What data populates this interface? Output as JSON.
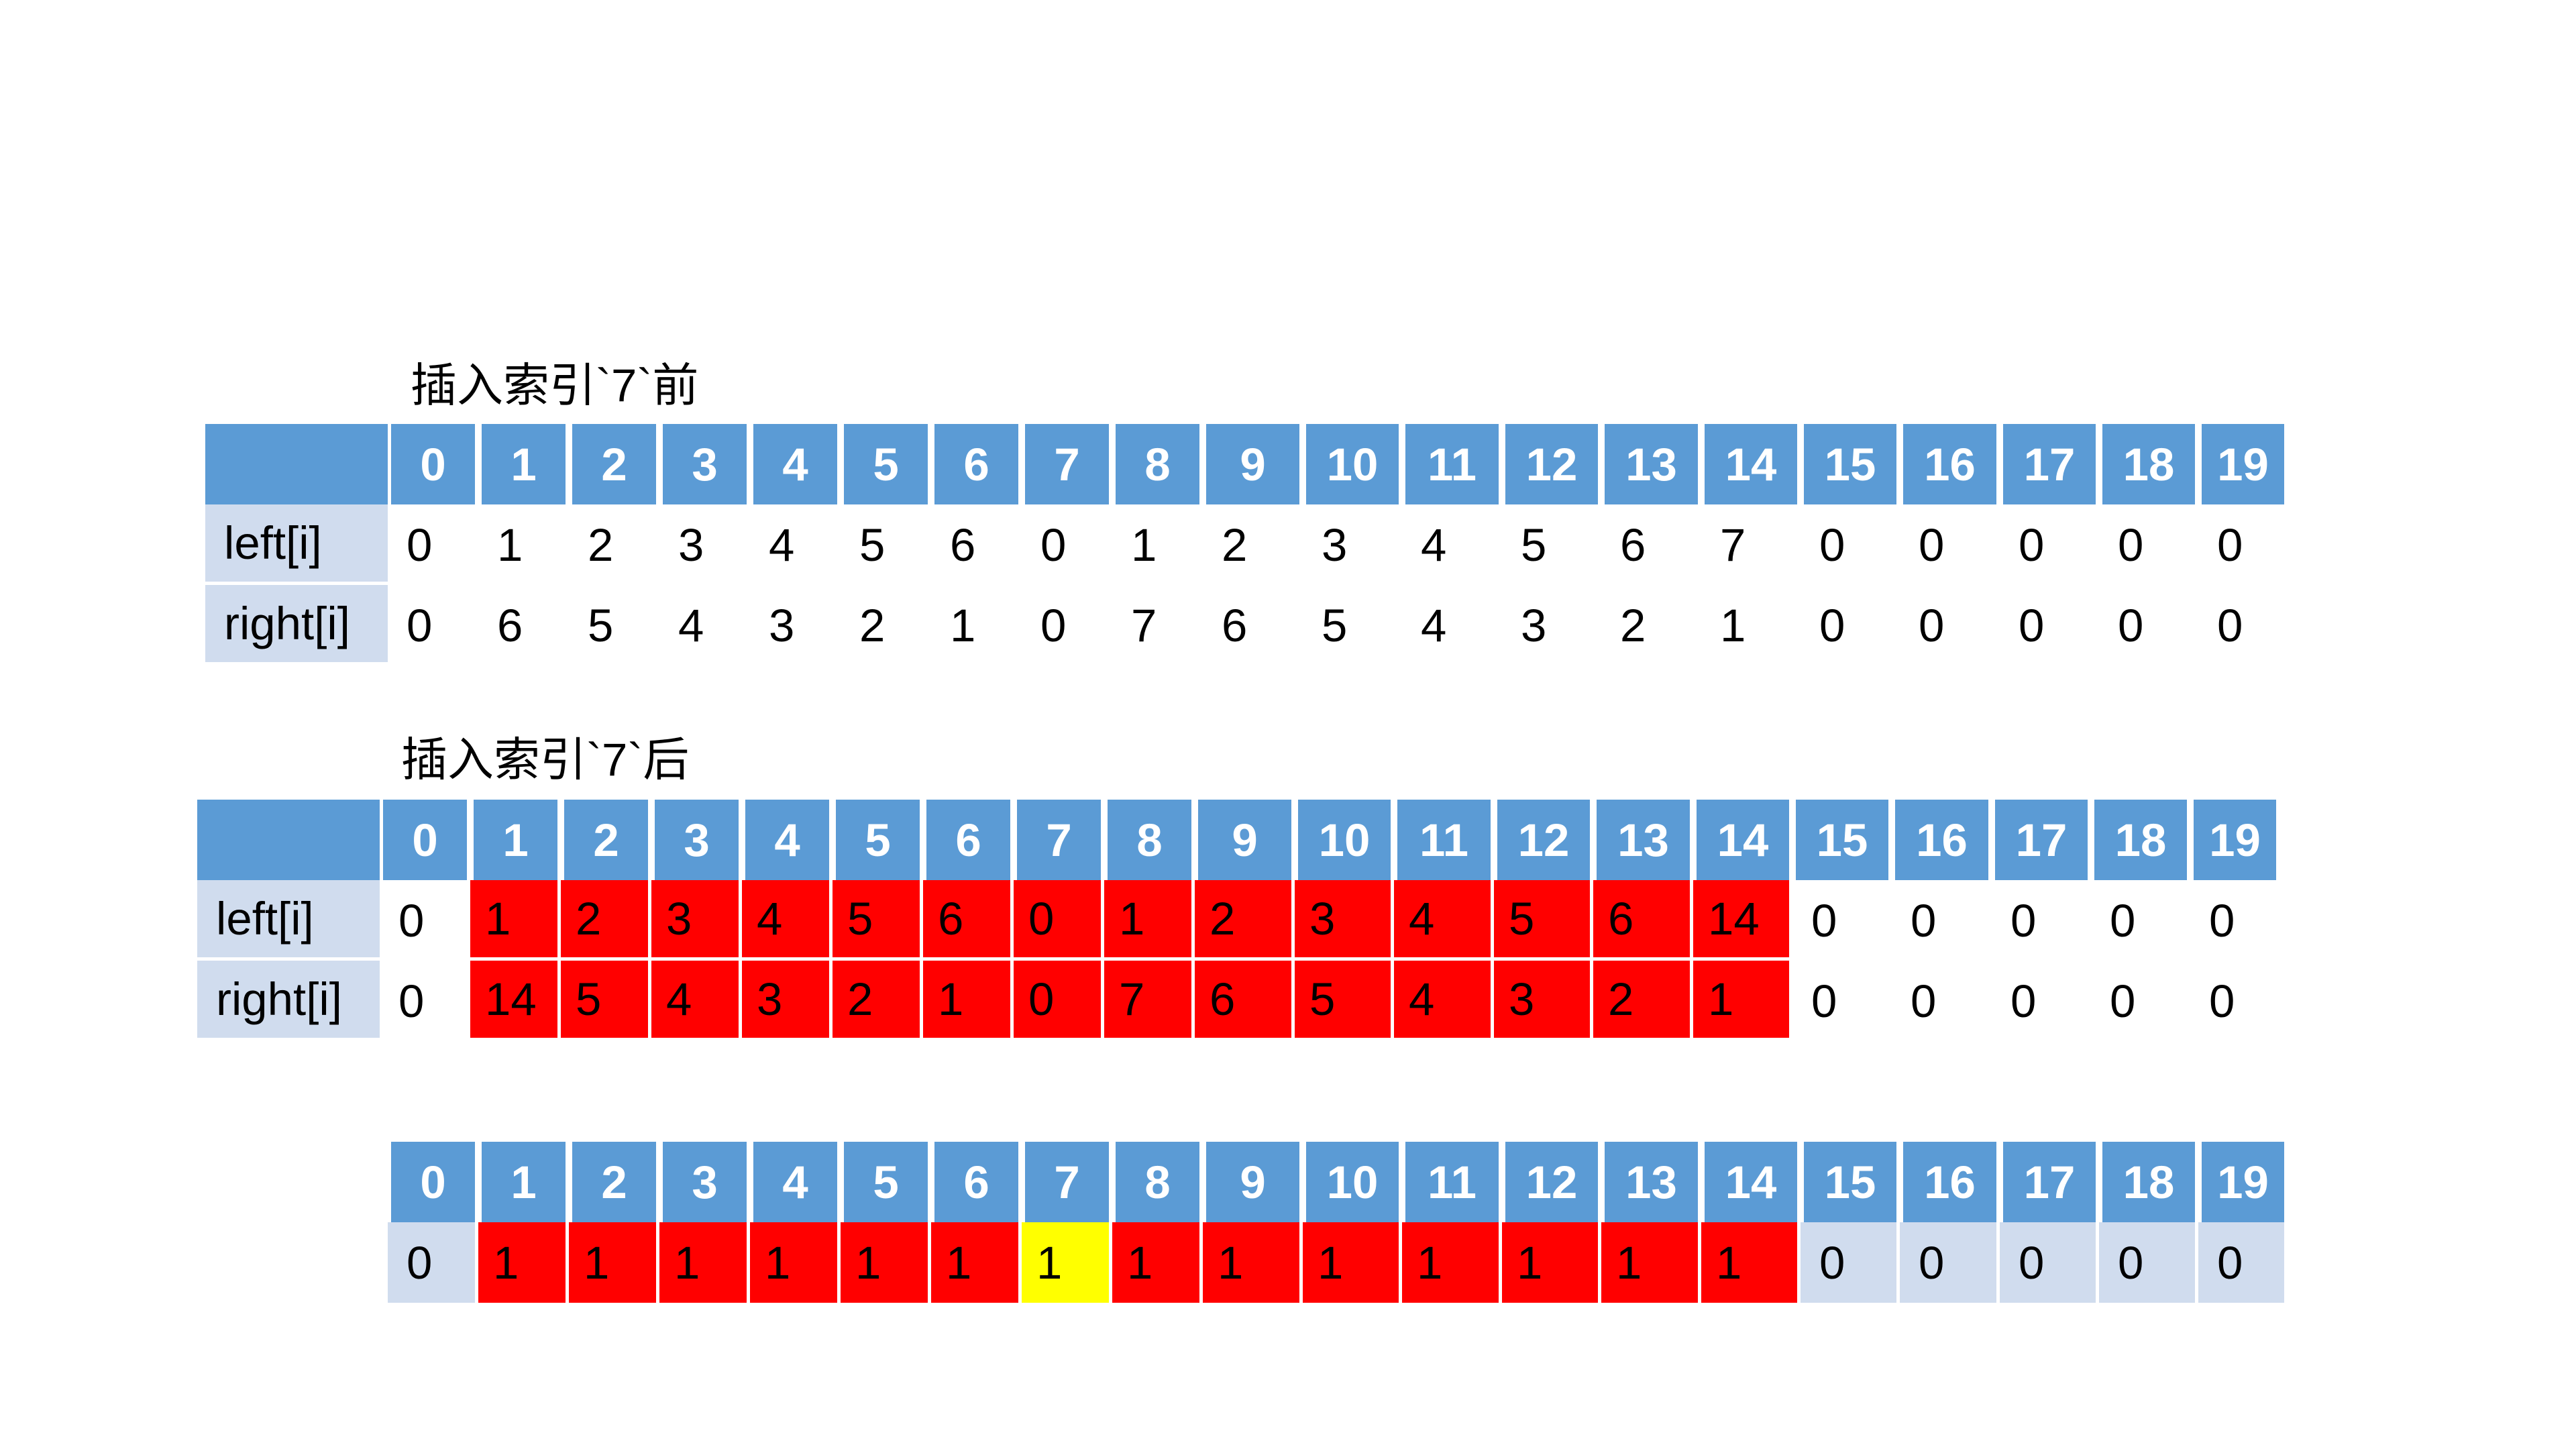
{
  "before": {
    "title": "插入索引`7`前",
    "row_labels": [
      "left[i]",
      "right[i]"
    ],
    "indices": [
      "0",
      "1",
      "2",
      "3",
      "4",
      "5",
      "6",
      "7",
      "8",
      "9",
      "10",
      "11",
      "12",
      "13",
      "14",
      "15",
      "16",
      "17",
      "18",
      "19"
    ],
    "left": [
      "0",
      "1",
      "2",
      "3",
      "4",
      "5",
      "6",
      "0",
      "1",
      "2",
      "3",
      "4",
      "5",
      "6",
      "7",
      "0",
      "0",
      "0",
      "0",
      "0"
    ],
    "right": [
      "0",
      "6",
      "5",
      "4",
      "3",
      "2",
      "1",
      "0",
      "7",
      "6",
      "5",
      "4",
      "3",
      "2",
      "1",
      "0",
      "0",
      "0",
      "0",
      "0"
    ]
  },
  "after": {
    "title": "插入索引`7`后",
    "row_labels": [
      "left[i]",
      "right[i]"
    ],
    "indices": [
      "0",
      "1",
      "2",
      "3",
      "4",
      "5",
      "6",
      "7",
      "8",
      "9",
      "10",
      "11",
      "12",
      "13",
      "14",
      "15",
      "16",
      "17",
      "18",
      "19"
    ],
    "left": [
      "0",
      "1",
      "2",
      "3",
      "4",
      "5",
      "6",
      "0",
      "1",
      "2",
      "3",
      "4",
      "5",
      "6",
      "14",
      "0",
      "0",
      "0",
      "0",
      "0"
    ],
    "right": [
      "0",
      "14",
      "5",
      "4",
      "3",
      "2",
      "1",
      "0",
      "7",
      "6",
      "5",
      "4",
      "3",
      "2",
      "1",
      "0",
      "0",
      "0",
      "0",
      "0"
    ],
    "highlight_color": "#ff0000"
  },
  "count": {
    "indices": [
      "0",
      "1",
      "2",
      "3",
      "4",
      "5",
      "6",
      "7",
      "8",
      "9",
      "10",
      "11",
      "12",
      "13",
      "14",
      "15",
      "16",
      "17",
      "18",
      "19"
    ],
    "values": [
      "0",
      "1",
      "1",
      "1",
      "1",
      "1",
      "1",
      "1",
      "1",
      "1",
      "1",
      "1",
      "1",
      "1",
      "1",
      "0",
      "0",
      "0",
      "0",
      "0"
    ],
    "highlight_color": "#ff0000",
    "inserted_color": "#ffff00",
    "inserted_index": 7
  },
  "colors": {
    "header": "#5b9bd5",
    "label_bg": "#d0dcee"
  }
}
